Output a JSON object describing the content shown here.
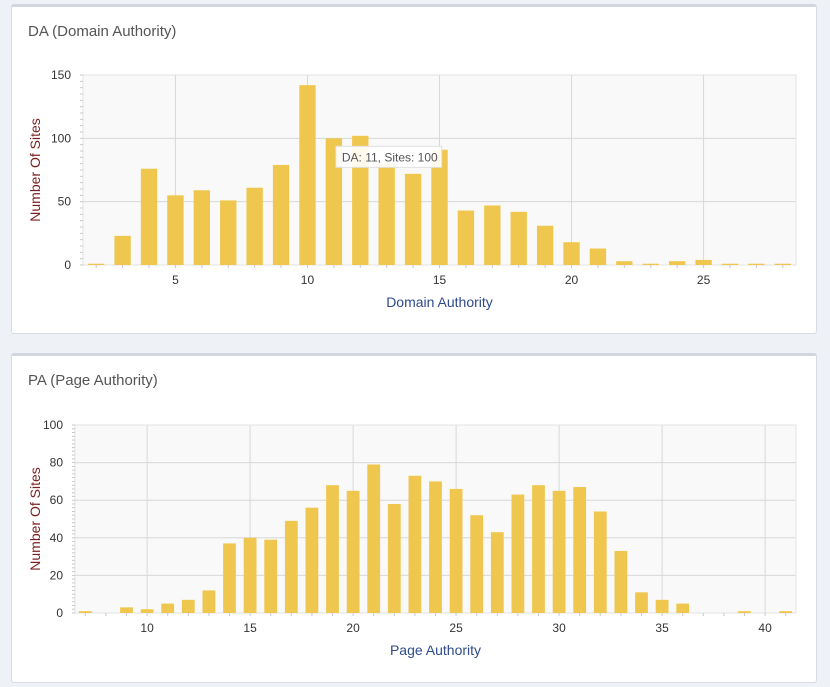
{
  "panels": [
    {
      "title": "DA (Domain Authority)"
    },
    {
      "title": "PA (Page Authority)"
    }
  ],
  "colors": {
    "bar": "#f0c74e",
    "grid": "#d8d8d8",
    "plot_bg": "#f9f9f9"
  },
  "chart_data": [
    {
      "type": "bar",
      "title": "DA (Domain Authority)",
      "xlabel": "Domain Authority",
      "ylabel": "Number Of Sites",
      "xlim": [
        1.5,
        28.5
      ],
      "ylim": [
        0,
        150
      ],
      "xticks": [
        5,
        10,
        15,
        20,
        25
      ],
      "yticks": [
        0,
        50,
        100,
        150
      ],
      "x": [
        2,
        3,
        4,
        5,
        6,
        7,
        8,
        9,
        10,
        11,
        12,
        13,
        14,
        15,
        16,
        17,
        18,
        19,
        20,
        21,
        22,
        23,
        24,
        25,
        26,
        27,
        28
      ],
      "values": [
        1,
        23,
        76,
        55,
        59,
        51,
        61,
        79,
        142,
        100,
        102,
        80,
        72,
        91,
        43,
        47,
        42,
        31,
        18,
        13,
        3,
        1,
        3,
        4,
        1,
        1,
        1
      ],
      "grid": true,
      "tooltip": {
        "text": "DA: 11, Sites: 100",
        "x": 11
      }
    },
    {
      "type": "bar",
      "title": "PA (Page Authority)",
      "xlabel": "Page Authority",
      "ylabel": "Number Of Sites",
      "xlim": [
        6.5,
        41.5
      ],
      "ylim": [
        0,
        100
      ],
      "xticks": [
        10,
        15,
        20,
        25,
        30,
        35,
        40
      ],
      "yticks": [
        0,
        20,
        40,
        60,
        80,
        100
      ],
      "x": [
        7,
        8,
        9,
        10,
        11,
        12,
        13,
        14,
        15,
        16,
        17,
        18,
        19,
        20,
        21,
        22,
        23,
        24,
        25,
        26,
        27,
        28,
        29,
        30,
        31,
        32,
        33,
        34,
        35,
        36,
        37,
        38,
        39,
        40,
        41
      ],
      "values": [
        1,
        0,
        3,
        2,
        5,
        7,
        12,
        37,
        40,
        39,
        49,
        56,
        68,
        65,
        79,
        58,
        73,
        70,
        66,
        52,
        43,
        63,
        68,
        65,
        67,
        54,
        33,
        11,
        7,
        5,
        0,
        0,
        1,
        0,
        1
      ],
      "grid": true
    }
  ]
}
